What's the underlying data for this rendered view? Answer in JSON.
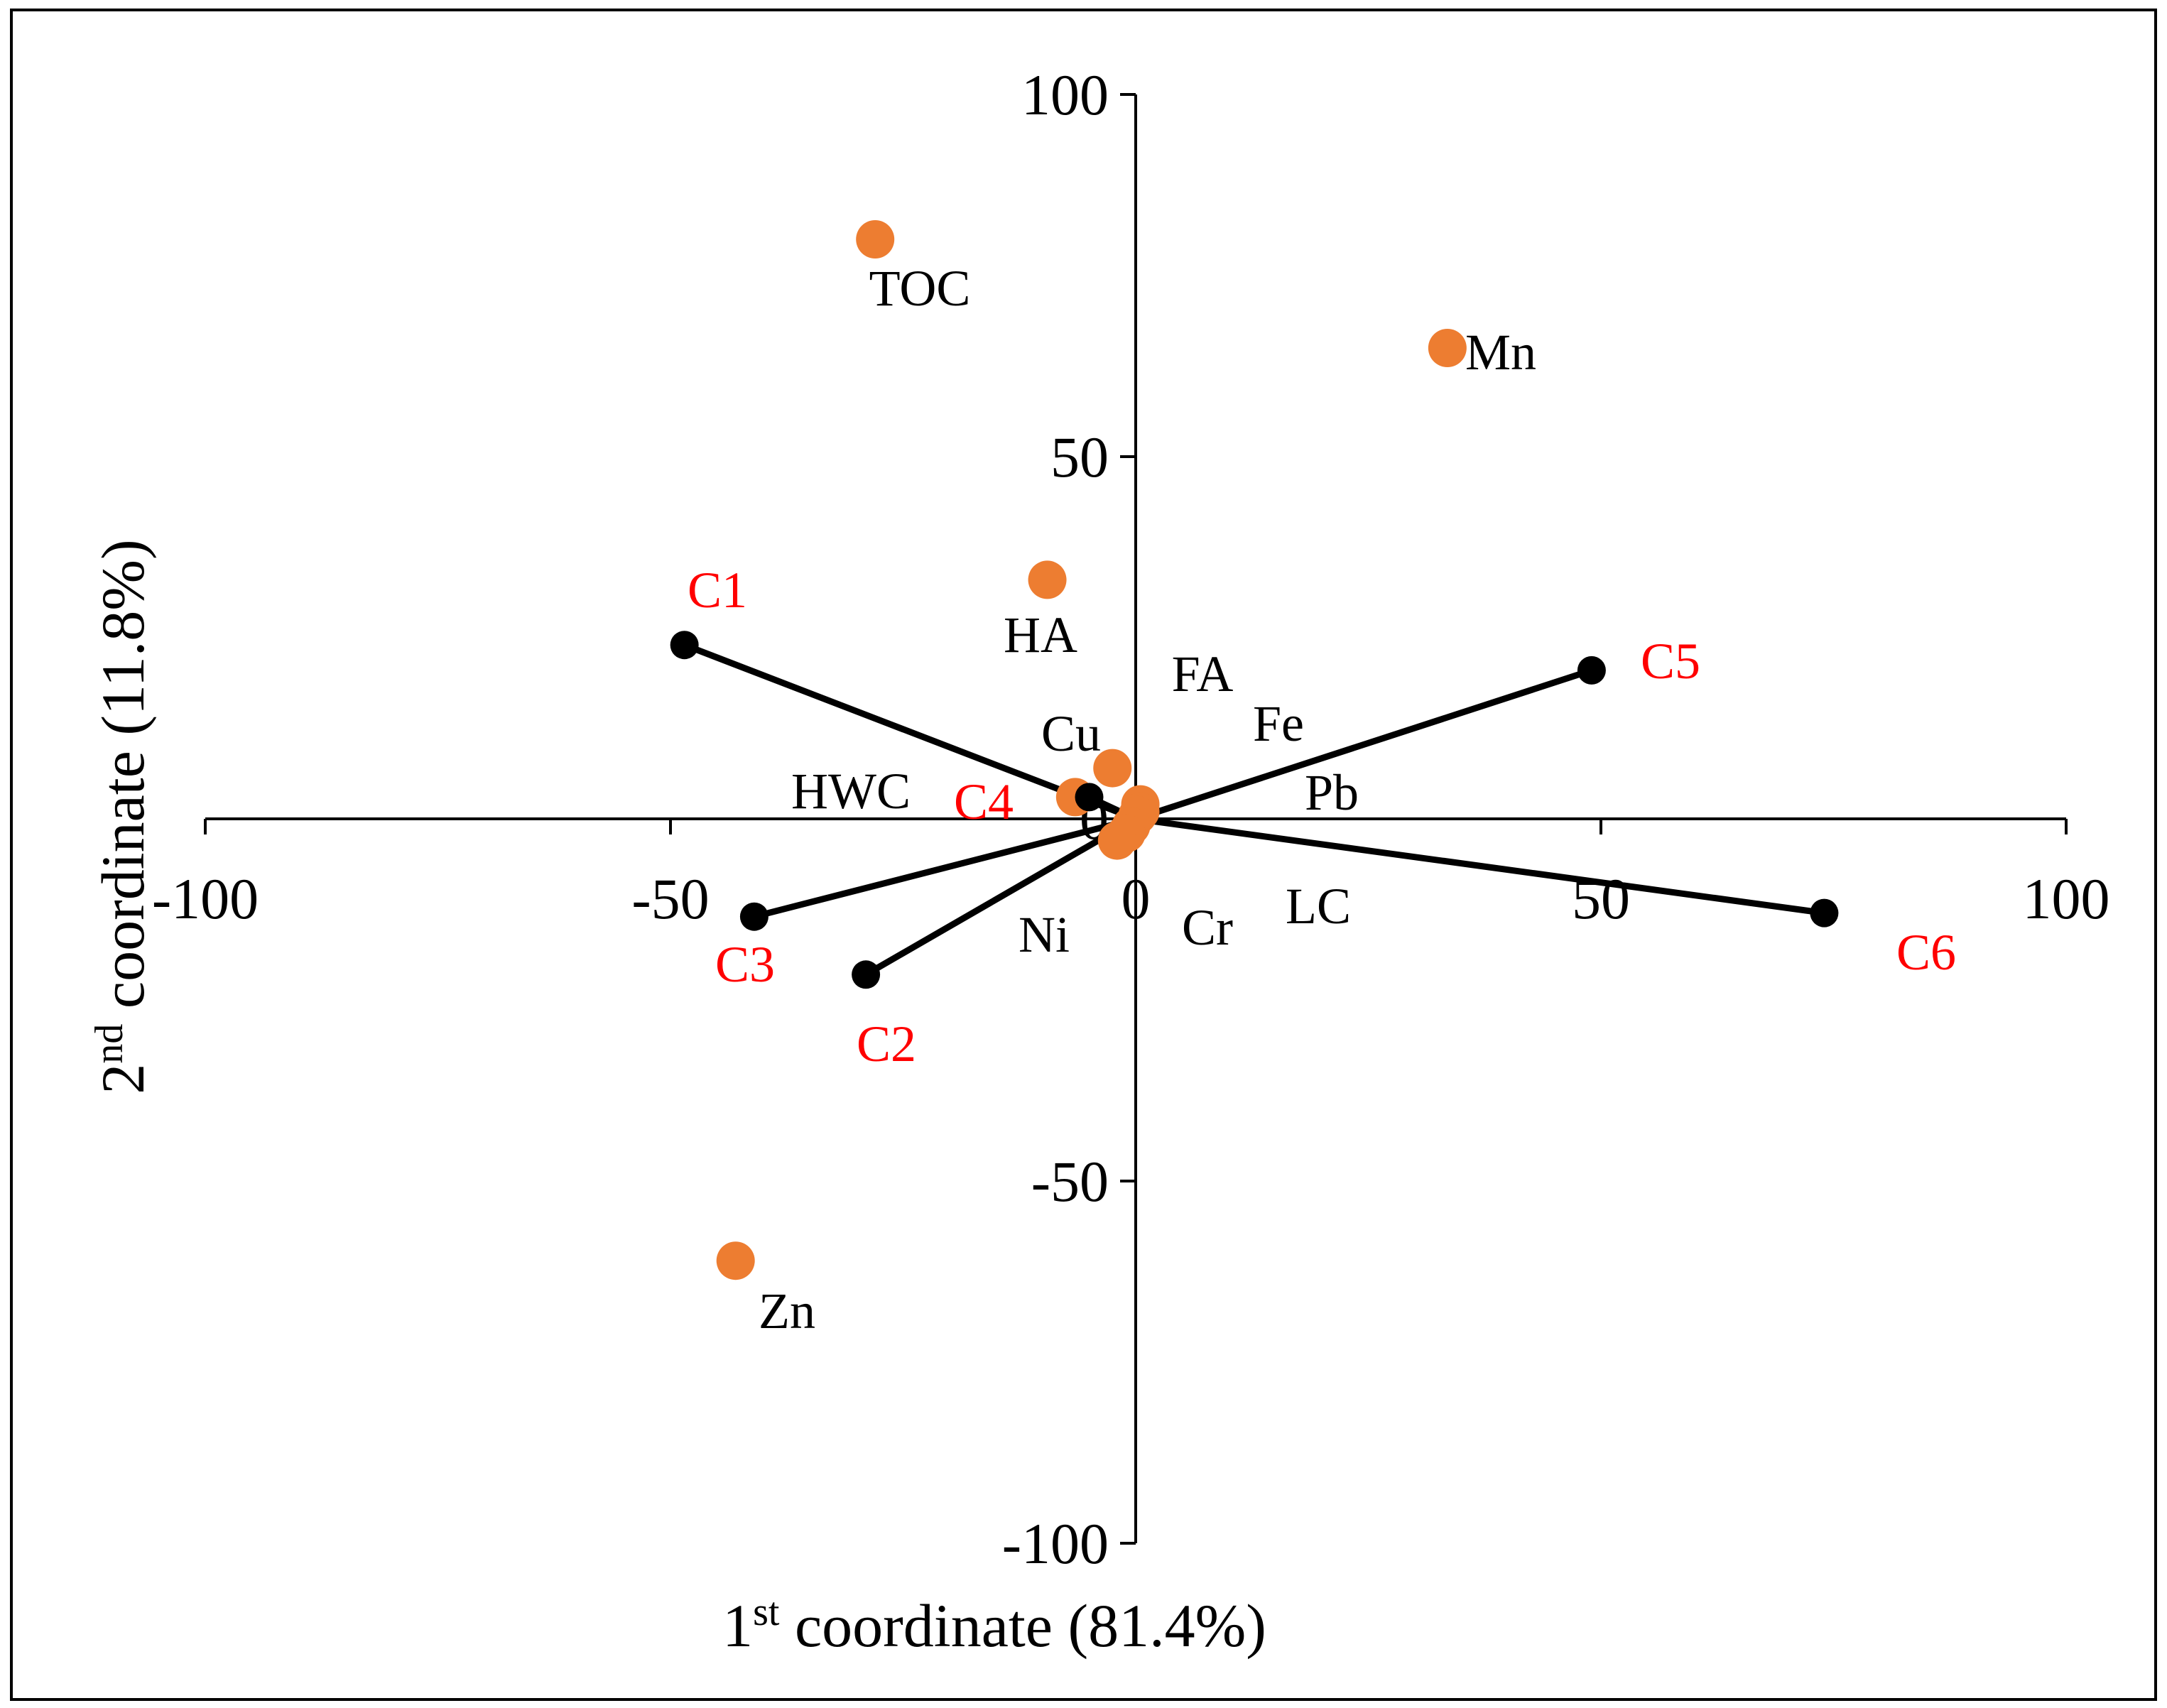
{
  "chart_data": {
    "type": "scatter",
    "title": "",
    "xlabel": {
      "prefix": "1",
      "sup": "st",
      "rest": " coordinate (81.4%)"
    },
    "ylabel": {
      "prefix": "2",
      "sup": "nd",
      "rest": " coordinate (11.8%)"
    },
    "xlim": [
      -100,
      100
    ],
    "ylim": [
      -100,
      100
    ],
    "xticks": [
      {
        "value": -100,
        "label": "-100"
      },
      {
        "value": -50,
        "label": "-50"
      },
      {
        "value": 0,
        "label": "0"
      },
      {
        "value": 50,
        "label": "50"
      },
      {
        "value": 100,
        "label": "100"
      }
    ],
    "yticks": [
      {
        "value": 100,
        "label": "100"
      },
      {
        "value": 50,
        "label": "50"
      },
      {
        "value": 0,
        "label": "0"
      },
      {
        "value": -50,
        "label": "-50"
      },
      {
        "value": -100,
        "label": "-100"
      }
    ],
    "grid": false,
    "legend": "none",
    "colors": {
      "variables": "#ED7D31",
      "samples": "#000000",
      "sample_labels": "#FF0000",
      "variable_labels": "#000000",
      "axes": "#000000"
    },
    "variables": [
      {
        "name": "TOC",
        "x": -28,
        "y": 80
      },
      {
        "name": "Mn",
        "x": 33.5,
        "y": 65
      },
      {
        "name": "HA",
        "x": -9.5,
        "y": 33
      },
      {
        "name": "Cu",
        "x": -2.5,
        "y": 7
      },
      {
        "name": "FA",
        "x": 0.5,
        "y": 2
      },
      {
        "name": "Fe",
        "x": 0.5,
        "y": 1
      },
      {
        "name": "Pb",
        "x": 0.2,
        "y": 0.5
      },
      {
        "name": "HWC",
        "x": -6.5,
        "y": 3
      },
      {
        "name": "LC",
        "x": -0.5,
        "y": -1
      },
      {
        "name": "Cr",
        "x": -1,
        "y": -2
      },
      {
        "name": "Ni",
        "x": -2,
        "y": -3
      },
      {
        "name": "Zn",
        "x": -43,
        "y": -61
      }
    ],
    "samples": [
      {
        "name": "C1",
        "x": -48.5,
        "y": 24
      },
      {
        "name": "C2",
        "x": -29,
        "y": -21.5
      },
      {
        "name": "C3",
        "x": -41,
        "y": -13.5
      },
      {
        "name": "C4",
        "x": -5,
        "y": 3
      },
      {
        "name": "C5",
        "x": 49,
        "y": 20.5
      },
      {
        "name": "C6",
        "x": 74,
        "y": -13
      }
    ]
  }
}
